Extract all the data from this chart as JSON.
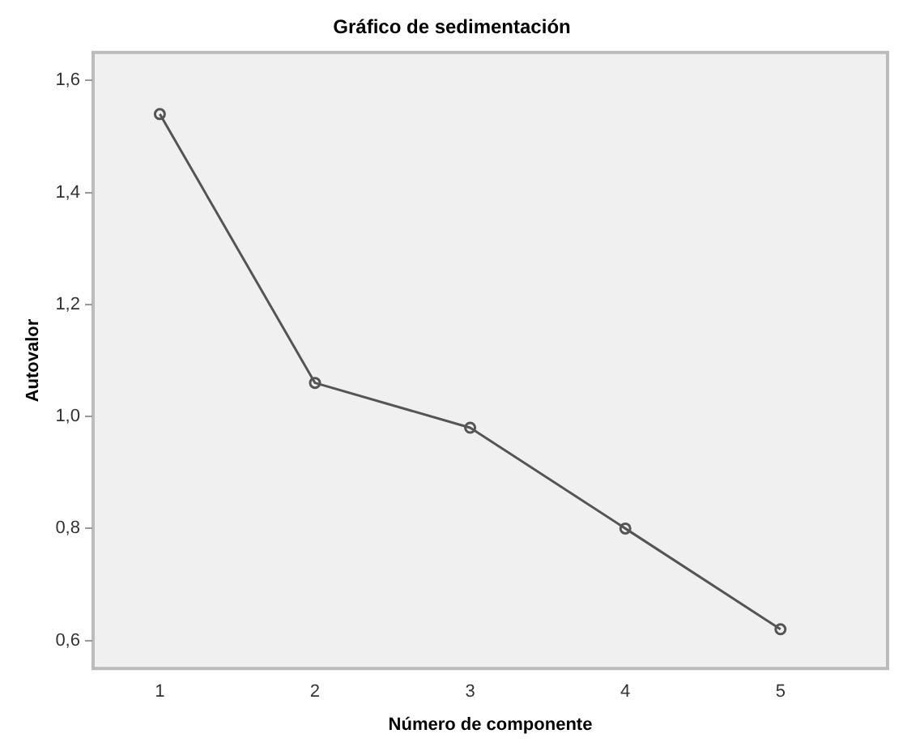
{
  "chart_data": {
    "type": "line",
    "title": "Gráfico de sedimentación",
    "xlabel": "Número de componente",
    "ylabel": "Autovalor",
    "x": [
      1,
      2,
      3,
      4,
      5
    ],
    "series": [
      {
        "color": "#555555",
        "values": [
          1.54,
          1.06,
          0.98,
          0.8,
          0.62
        ]
      }
    ],
    "xlim": [
      0.57,
      5.69
    ],
    "xticks": [
      1,
      2,
      3,
      4,
      5
    ],
    "ylim": [
      0.55,
      1.65
    ],
    "yticks": [
      {
        "value": 0.6,
        "label": "0,6"
      },
      {
        "value": 0.8,
        "label": "0,8"
      },
      {
        "value": 1.0,
        "label": "1,0"
      },
      {
        "value": 1.2,
        "label": "1,2"
      },
      {
        "value": 1.4,
        "label": "1,4"
      },
      {
        "value": 1.6,
        "label": "1,6"
      }
    ],
    "grid": false,
    "legend": false,
    "marker": "circle",
    "line_style": "solid"
  }
}
